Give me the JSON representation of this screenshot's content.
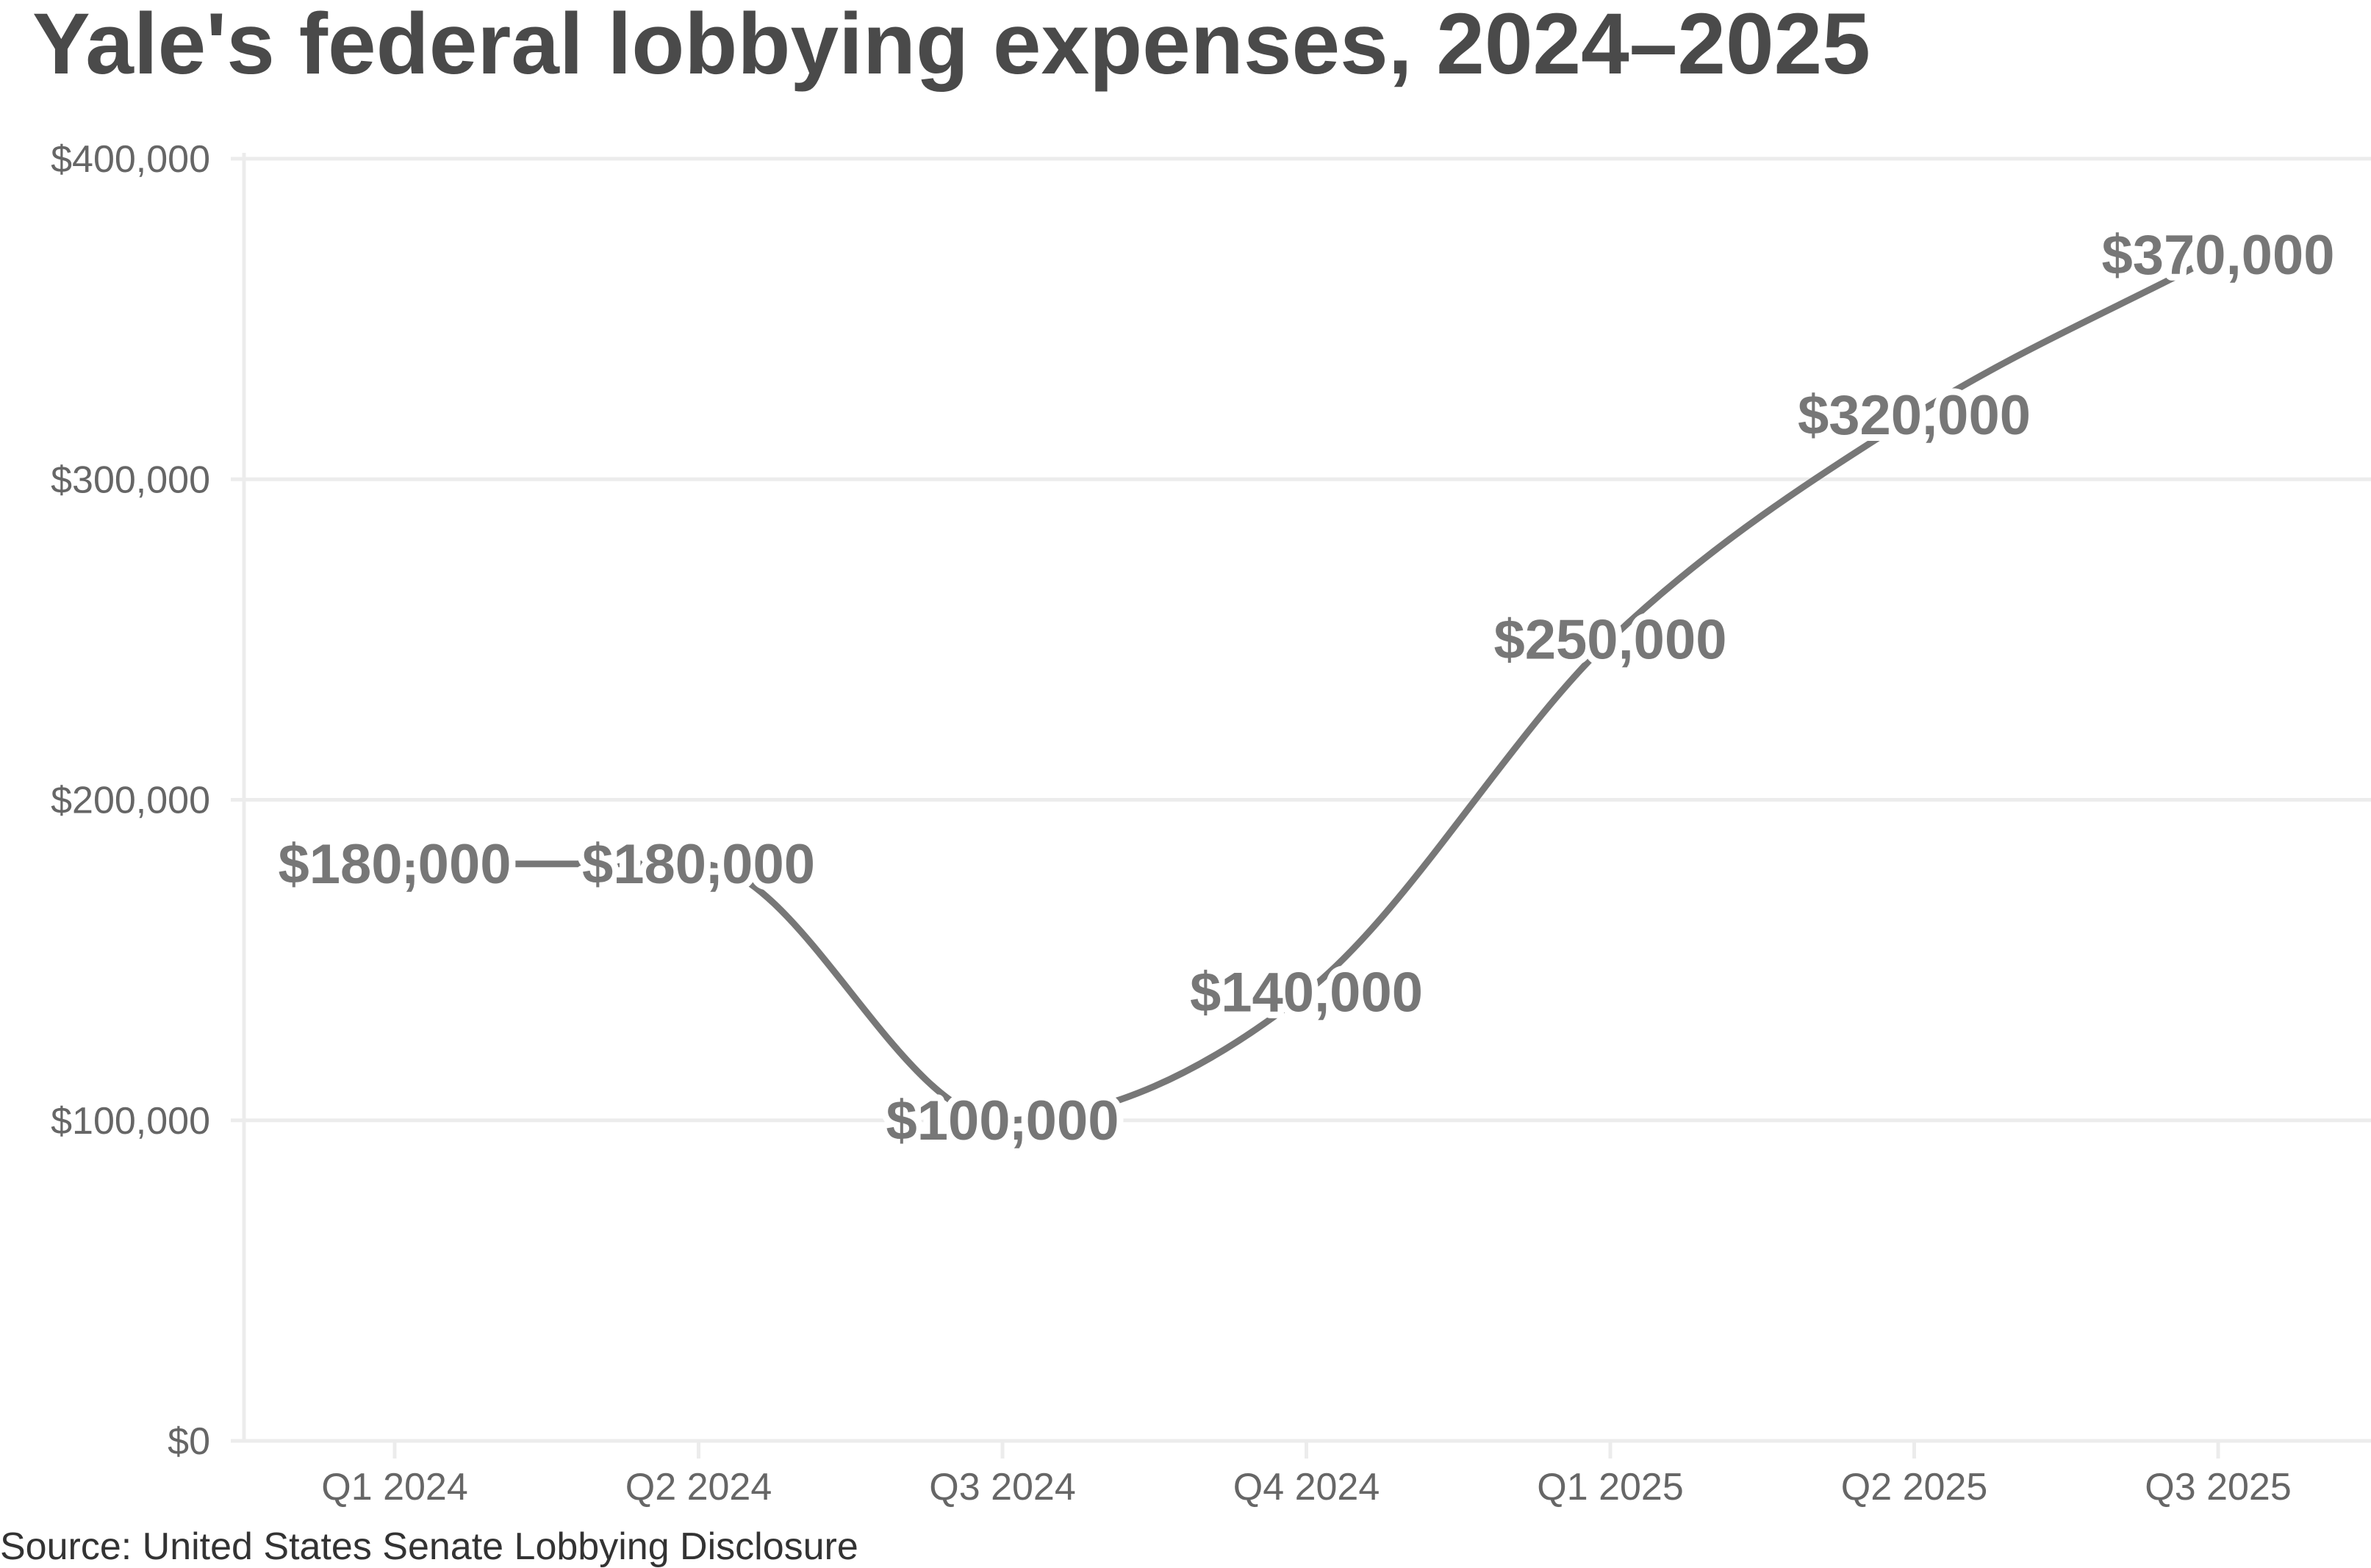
{
  "chart_data": {
    "type": "line",
    "title": "Yale's federal lobbying expenses, 2024–2025",
    "source": "Source: United States Senate Lobbying Disclosure",
    "xlabel": "",
    "ylabel": "",
    "categories": [
      "Q1 2024",
      "Q2 2024",
      "Q3 2024",
      "Q4 2024",
      "Q1 2025",
      "Q2 2025",
      "Q3 2025"
    ],
    "series": [
      {
        "name": "Lobbying expenses",
        "values": [
          180000,
          180000,
          100000,
          140000,
          250000,
          320000,
          370000
        ]
      }
    ],
    "data_labels": [
      "$180,000",
      "$180,000",
      "$100,000",
      "$140,000",
      "$250,000",
      "$320,000",
      "$370,000"
    ],
    "y_ticks": [
      0,
      100000,
      200000,
      300000,
      400000
    ],
    "y_tick_labels": [
      "$0",
      "$100,000",
      "$200,000",
      "$300,000",
      "$400,000"
    ],
    "ylim": [
      0,
      400000
    ],
    "grid": true,
    "legend": "none",
    "colors": {
      "line": "#777777",
      "title": "#4a4a4a",
      "grid": "#ececec",
      "tick_text": "#666666"
    }
  }
}
